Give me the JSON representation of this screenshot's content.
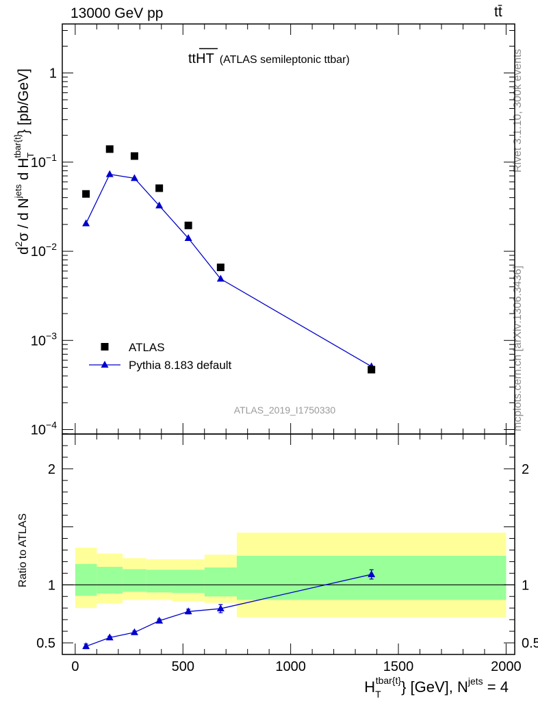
{
  "header": {
    "energy_label": "13000 GeV pp",
    "process_label": "tt̄"
  },
  "side_labels": {
    "rivet": "Rivet 3.1.10,  300k events",
    "mcplots": "mcplots.cern.ch [arXiv:1306.3436]"
  },
  "chart_data": {
    "type": "scatter",
    "title_main": "tt",
    "title_overline": "HT",
    "title_sub": "(ATLAS semileptonic ttbar)",
    "analysis_id": "ATLAS_2019_I1750330",
    "ylabel_main": "d²σ / d N",
    "ylabel_main_pieces": {
      "d1": "d",
      "sup2": "2",
      "sigma": "σ  /  d N",
      "jets": "jets",
      "dH": " d H",
      "sub_T": "T",
      "sup_tbar": "tbar{t}",
      "close": "} [pb/GeV]"
    },
    "ylabel_ratio": "Ratio to ATLAS",
    "xlabel_pieces": {
      "H": "H",
      "sub_T": "T",
      "sup_tbar": "tbar{t}",
      "mid": "} [GeV], N",
      "sup_jets": "jets",
      "end": " = 4"
    },
    "x_range": [
      -60,
      2040
    ],
    "x_ticks": [
      0,
      500,
      1000,
      1500,
      2000
    ],
    "x_tick_labels": [
      "0",
      "500",
      "1000",
      "1500",
      "2000"
    ],
    "y_main_range_log10": [
      -4.05,
      0.55
    ],
    "y_main_ticks": [
      {
        "exp": 0,
        "label": "1",
        "sup": ""
      },
      {
        "exp": -1,
        "label": "10",
        "sup": "−1"
      },
      {
        "exp": -2,
        "label": "10",
        "sup": "−2"
      },
      {
        "exp": -3,
        "label": "10",
        "sup": "−3"
      },
      {
        "exp": -4,
        "label": "10",
        "sup": "−4"
      }
    ],
    "y_ratio_range": [
      0.4,
      2.3
    ],
    "y_ratio_ticks": [
      0.5,
      1,
      2
    ],
    "y_ratio_tick_labels": [
      "0.5",
      "1",
      "2"
    ],
    "bin_edges": [
      0,
      100,
      220,
      330,
      450,
      600,
      750,
      2000
    ],
    "x_centers": [
      50,
      160,
      275,
      390,
      525,
      675,
      1375
    ],
    "series": [
      {
        "name": "ATLAS",
        "marker": "square",
        "color": "#000000",
        "values": [
          0.044,
          0.14,
          0.117,
          0.051,
          0.0195,
          0.0066,
          0.00047
        ]
      },
      {
        "name": "Pythia 8.183 default",
        "marker": "triangle",
        "color": "#0000cc",
        "values": [
          0.0205,
          0.073,
          0.066,
          0.0325,
          0.014,
          0.0049,
          0.00051
        ]
      }
    ],
    "ratio": {
      "values": [
        0.47,
        0.545,
        0.59,
        0.69,
        0.77,
        0.795,
        1.09
      ],
      "errors": [
        0.02,
        0.012,
        0.012,
        0.015,
        0.02,
        0.035,
        0.04
      ],
      "band_inner": [
        [
          0.905,
          1.18
        ],
        [
          0.925,
          1.155
        ],
        [
          0.94,
          1.135
        ],
        [
          0.935,
          1.13
        ],
        [
          0.93,
          1.13
        ],
        [
          0.9,
          1.15
        ],
        [
          0.87,
          1.25
        ]
      ],
      "band_outer": [
        [
          0.8,
          1.32
        ],
        [
          0.84,
          1.27
        ],
        [
          0.87,
          1.23
        ],
        [
          0.87,
          1.22
        ],
        [
          0.86,
          1.22
        ],
        [
          0.845,
          1.26
        ],
        [
          0.72,
          1.45
        ]
      ],
      "inner_color": "#99ff99",
      "outer_color": "#ffff99"
    },
    "legend_position": "lower-left"
  }
}
